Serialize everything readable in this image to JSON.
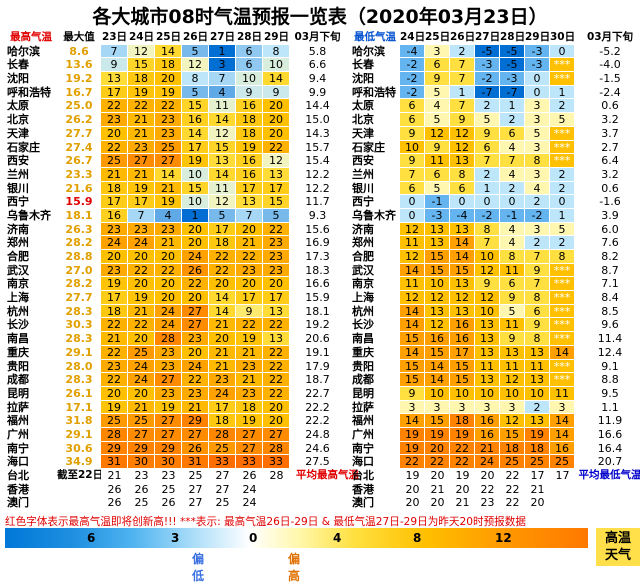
{
  "title": "各大城市08时气温预报一览表（2020年03月23日）",
  "left_headers": [
    "最高气温",
    "最大值",
    "23日",
    "24日",
    "25日",
    "26日",
    "27日",
    "28日",
    "29日",
    "03月下旬"
  ],
  "right_headers": [
    "最低气温",
    "24日",
    "25日",
    "26日",
    "27日",
    "28日",
    "29日",
    "30日",
    "03月下旬"
  ],
  "cities": [
    "哈尔滨",
    "长春",
    "沈阳",
    "呼和浩特",
    "太原",
    "北京",
    "天津",
    "石家庄",
    "西安",
    "兰州",
    "银川",
    "西宁",
    "乌鲁木齐",
    "济南",
    "郑州",
    "合肥",
    "武汉",
    "南京",
    "上海",
    "杭州",
    "长沙",
    "南昌",
    "重庆",
    "贵阳",
    "成都",
    "昆明",
    "拉萨",
    "福州",
    "广州",
    "南宁",
    "海口"
  ],
  "left_rows": [
    {
      "max": "8.6",
      "red": false,
      "d": [
        "7",
        "12",
        "14",
        "5",
        "1",
        "6",
        "8"
      ],
      "mon": "5.8"
    },
    {
      "max": "13.6",
      "red": false,
      "d": [
        "9",
        "15",
        "18",
        "12",
        "3",
        "6",
        "10"
      ],
      "mon": "6.6"
    },
    {
      "max": "19.2",
      "red": false,
      "d": [
        "13",
        "18",
        "20",
        "8",
        "7",
        "10",
        "14"
      ],
      "mon": "9.4"
    },
    {
      "max": "16.7",
      "red": false,
      "d": [
        "17",
        "19",
        "19",
        "5",
        "4",
        "9",
        "9"
      ],
      "mon": "9.9"
    },
    {
      "max": "25.0",
      "red": false,
      "d": [
        "22",
        "22",
        "22",
        "15",
        "11",
        "16",
        "20"
      ],
      "mon": "14.4"
    },
    {
      "max": "26.2",
      "red": false,
      "d": [
        "23",
        "21",
        "23",
        "16",
        "14",
        "18",
        "20"
      ],
      "mon": "15.0"
    },
    {
      "max": "27.7",
      "red": false,
      "d": [
        "20",
        "21",
        "23",
        "14",
        "12",
        "18",
        "20"
      ],
      "mon": "14.3"
    },
    {
      "max": "27.4",
      "red": false,
      "d": [
        "22",
        "23",
        "25",
        "17",
        "15",
        "19",
        "22"
      ],
      "mon": "15.7"
    },
    {
      "max": "26.7",
      "red": false,
      "d": [
        "25",
        "27",
        "27",
        "19",
        "13",
        "16",
        "12"
      ],
      "mon": "15.4"
    },
    {
      "max": "23.3",
      "red": false,
      "d": [
        "21",
        "21",
        "14",
        "10",
        "14",
        "16",
        "13"
      ],
      "mon": "12.2"
    },
    {
      "max": "21.6",
      "red": false,
      "d": [
        "18",
        "19",
        "21",
        "15",
        "11",
        "17",
        "17"
      ],
      "mon": "12.2"
    },
    {
      "max": "15.9",
      "red": true,
      "d": [
        "17",
        "17",
        "19",
        "10",
        "12",
        "13",
        "15"
      ],
      "mon": "11.7"
    },
    {
      "max": "18.1",
      "red": false,
      "d": [
        "16",
        "7",
        "4",
        "1",
        "5",
        "7",
        "5"
      ],
      "mon": "9.3"
    },
    {
      "max": "26.3",
      "red": false,
      "d": [
        "23",
        "23",
        "23",
        "20",
        "17",
        "20",
        "22"
      ],
      "mon": "15.6"
    },
    {
      "max": "28.2",
      "red": false,
      "d": [
        "24",
        "24",
        "21",
        "20",
        "18",
        "21",
        "23"
      ],
      "mon": "16.9"
    },
    {
      "max": "28.8",
      "red": false,
      "d": [
        "20",
        "20",
        "20",
        "24",
        "22",
        "22",
        "23"
      ],
      "mon": "17.3"
    },
    {
      "max": "27.0",
      "red": false,
      "d": [
        "23",
        "22",
        "22",
        "26",
        "22",
        "23",
        "23"
      ],
      "mon": "18.3"
    },
    {
      "max": "28.2",
      "red": false,
      "d": [
        "19",
        "20",
        "20",
        "22",
        "20",
        "20",
        "20"
      ],
      "mon": "16.6"
    },
    {
      "max": "27.7",
      "red": false,
      "d": [
        "17",
        "19",
        "20",
        "20",
        "14",
        "17",
        "17"
      ],
      "mon": "15.9"
    },
    {
      "max": "28.3",
      "red": false,
      "d": [
        "18",
        "21",
        "24",
        "27",
        "14",
        "9",
        "13"
      ],
      "mon": "18.1"
    },
    {
      "max": "30.3",
      "red": false,
      "d": [
        "22",
        "22",
        "24",
        "27",
        "21",
        "22",
        "22"
      ],
      "mon": "19.2"
    },
    {
      "max": "28.3",
      "red": false,
      "d": [
        "21",
        "20",
        "28",
        "23",
        "20",
        "19",
        "13"
      ],
      "mon": "20.6"
    },
    {
      "max": "29.1",
      "red": false,
      "d": [
        "22",
        "25",
        "23",
        "20",
        "21",
        "21",
        "22"
      ],
      "mon": "19.1"
    },
    {
      "max": "28.0",
      "red": false,
      "d": [
        "23",
        "24",
        "23",
        "24",
        "21",
        "23",
        "22"
      ],
      "mon": "17.9"
    },
    {
      "max": "28.3",
      "red": false,
      "d": [
        "22",
        "24",
        "27",
        "22",
        "23",
        "21",
        "22"
      ],
      "mon": "18.7"
    },
    {
      "max": "26.1",
      "red": false,
      "d": [
        "20",
        "20",
        "23",
        "23",
        "24",
        "23",
        "22"
      ],
      "mon": "22.7"
    },
    {
      "max": "17.1",
      "red": false,
      "d": [
        "19",
        "21",
        "19",
        "21",
        "17",
        "18",
        "20"
      ],
      "mon": "22.2"
    },
    {
      "max": "31.8",
      "red": false,
      "d": [
        "25",
        "25",
        "27",
        "29",
        "18",
        "19",
        "20"
      ],
      "mon": "22.2"
    },
    {
      "max": "29.1",
      "red": false,
      "d": [
        "28",
        "27",
        "27",
        "27",
        "28",
        "27",
        "27"
      ],
      "mon": "24.8"
    },
    {
      "max": "30.6",
      "red": false,
      "d": [
        "29",
        "29",
        "29",
        "26",
        "25",
        "27",
        "28"
      ],
      "mon": "24.6"
    },
    {
      "max": "34.9",
      "red": false,
      "d": [
        "31",
        "30",
        "30",
        "31",
        "33",
        "33",
        "33"
      ],
      "mon": "27.5"
    }
  ],
  "right_rows": [
    {
      "d": [
        "-4",
        "3",
        "2",
        "-5",
        "-5",
        "-3",
        "0"
      ],
      "mon": "-5.2"
    },
    {
      "d": [
        "-2",
        "6",
        "7",
        "-3",
        "-5",
        "-3",
        "***"
      ],
      "mon": "-4.0"
    },
    {
      "d": [
        "-2",
        "9",
        "7",
        "-2",
        "-3",
        "0",
        "***"
      ],
      "mon": "-1.5"
    },
    {
      "d": [
        "-2",
        "5",
        "1",
        "-7",
        "-7",
        "0",
        "1"
      ],
      "mon": "-2.4"
    },
    {
      "d": [
        "6",
        "4",
        "7",
        "2",
        "1",
        "3",
        "2"
      ],
      "mon": "0.6"
    },
    {
      "d": [
        "6",
        "5",
        "9",
        "5",
        "2",
        "3",
        "5"
      ],
      "mon": "3.2"
    },
    {
      "d": [
        "9",
        "12",
        "12",
        "9",
        "6",
        "5",
        "***"
      ],
      "mon": "3.7"
    },
    {
      "d": [
        "10",
        "9",
        "12",
        "6",
        "4",
        "3",
        "***"
      ],
      "mon": "2.7"
    },
    {
      "d": [
        "9",
        "11",
        "13",
        "7",
        "7",
        "8",
        "***"
      ],
      "mon": "6.4"
    },
    {
      "d": [
        "7",
        "6",
        "8",
        "2",
        "4",
        "3",
        "2"
      ],
      "mon": "3.2"
    },
    {
      "d": [
        "6",
        "5",
        "6",
        "1",
        "2",
        "4",
        "2"
      ],
      "mon": "0.6"
    },
    {
      "d": [
        "0",
        "-1",
        "0",
        "0",
        "0",
        "2",
        "0"
      ],
      "mon": "-1.6"
    },
    {
      "d": [
        "0",
        "-3",
        "-4",
        "-2",
        "-1",
        "-2",
        "1"
      ],
      "mon": "3.9"
    },
    {
      "d": [
        "12",
        "13",
        "13",
        "8",
        "4",
        "3",
        "5"
      ],
      "mon": "6.0"
    },
    {
      "d": [
        "11",
        "13",
        "14",
        "7",
        "4",
        "2",
        "2"
      ],
      "mon": "7.6"
    },
    {
      "d": [
        "12",
        "15",
        "14",
        "10",
        "8",
        "7",
        "8"
      ],
      "mon": "8.2"
    },
    {
      "d": [
        "14",
        "15",
        "15",
        "12",
        "11",
        "9",
        "***"
      ],
      "mon": "8.7"
    },
    {
      "d": [
        "11",
        "10",
        "13",
        "9",
        "6",
        "7",
        "***"
      ],
      "mon": "7.1"
    },
    {
      "d": [
        "12",
        "12",
        "12",
        "12",
        "9",
        "8",
        "***"
      ],
      "mon": "8.4"
    },
    {
      "d": [
        "14",
        "13",
        "13",
        "10",
        "5",
        "6",
        "***"
      ],
      "mon": "8.5"
    },
    {
      "d": [
        "14",
        "12",
        "16",
        "13",
        "11",
        "9",
        "***"
      ],
      "mon": "9.6"
    },
    {
      "d": [
        "15",
        "16",
        "16",
        "13",
        "9",
        "8",
        "***"
      ],
      "mon": "11.4"
    },
    {
      "d": [
        "14",
        "15",
        "17",
        "13",
        "13",
        "13",
        "14"
      ],
      "mon": "12.4"
    },
    {
      "d": [
        "15",
        "14",
        "15",
        "11",
        "11",
        "11",
        "***"
      ],
      "mon": "9.1"
    },
    {
      "d": [
        "15",
        "14",
        "15",
        "13",
        "12",
        "13",
        "***"
      ],
      "mon": "8.8"
    },
    {
      "d": [
        "9",
        "10",
        "10",
        "10",
        "10",
        "10",
        "11"
      ],
      "mon": "9.5"
    },
    {
      "d": [
        "3",
        "3",
        "3",
        "3",
        "3",
        "2",
        "3"
      ],
      "mon": "1.1"
    },
    {
      "d": [
        "14",
        "15",
        "18",
        "16",
        "12",
        "13",
        "14"
      ],
      "mon": "11.9"
    },
    {
      "d": [
        "19",
        "19",
        "19",
        "16",
        "15",
        "19",
        "14"
      ],
      "mon": "16.6"
    },
    {
      "d": [
        "19",
        "20",
        "22",
        "21",
        "18",
        "18",
        "16"
      ],
      "mon": "16.4"
    },
    {
      "d": [
        "22",
        "22",
        "22",
        "24",
        "25",
        "25",
        "25"
      ],
      "mon": "20.7"
    }
  ],
  "extra_rows": [
    {
      "city": "台北",
      "left_label": "截至22日",
      "left_d": [
        "21",
        "23",
        "23",
        "25",
        "27",
        "26",
        "28"
      ],
      "left_note": "平均最高气温",
      "right_d": [
        "19",
        "20",
        "19",
        "20",
        "22",
        "17",
        "17"
      ],
      "right_note": "平均最低气温"
    },
    {
      "city": "香港",
      "left_label": "",
      "left_d": [
        "26",
        "26",
        "25",
        "27",
        "27",
        "24",
        ""
      ],
      "left_note": "",
      "right_d": [
        "20",
        "21",
        "20",
        "22",
        "22",
        "21",
        ""
      ],
      "right_note": ""
    },
    {
      "city": "澳门",
      "left_label": "",
      "left_d": [
        "26",
        "25",
        "26",
        "27",
        "25",
        "24",
        ""
      ],
      "left_note": "",
      "right_d": [
        "20",
        "20",
        "21",
        "23",
        "22",
        "20",
        ""
      ],
      "right_note": ""
    }
  ],
  "footnote": "红色字体表示最高气温即将创新高!!!  ***表示: 最高气温26日-29日 & 最低气温27日-29日为昨天20时预报数据",
  "legend": {
    "ticks": [
      "6",
      "3",
      "0",
      "4",
      "8",
      "12"
    ],
    "low_label": "偏低",
    "high_label": "偏高",
    "box_line1": "高温",
    "box_line2": "天气",
    "low_color": "#3a70e0",
    "high_color": "#e07000",
    "box_color": "#ffe04a"
  },
  "colors": {
    "max_text": "#e0a000",
    "record_text": "#e00000",
    "blue_note": "#0000cc"
  }
}
